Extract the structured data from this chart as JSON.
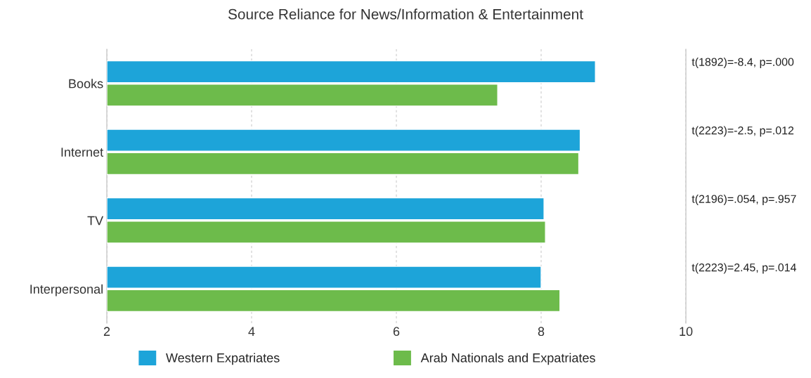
{
  "chart_data": {
    "type": "bar",
    "orientation": "horizontal",
    "title": "Source Reliance for News/Information & Entertainment",
    "categories": [
      "Books",
      "Internet",
      "TV",
      "Interpersonal"
    ],
    "series": [
      {
        "name": "Western Expatriates",
        "color": "#1da4d9",
        "values": [
          8.75,
          8.54,
          8.04,
          8.0
        ]
      },
      {
        "name": "Arab Nationals and Expatriates",
        "color": "#6dbb4b",
        "values": [
          7.4,
          8.52,
          8.06,
          8.26
        ]
      }
    ],
    "xlim": [
      2,
      10
    ],
    "xticks": [
      2,
      4,
      6,
      8,
      10
    ],
    "grid": "x",
    "legend": "bottom",
    "annotations": [
      "t(1892)=-8.4, p=.000",
      "t(2223)=-2.5, p=.012",
      "t(2196)=.054, p=.957",
      "t(2223)=2.45, p=.014"
    ]
  }
}
